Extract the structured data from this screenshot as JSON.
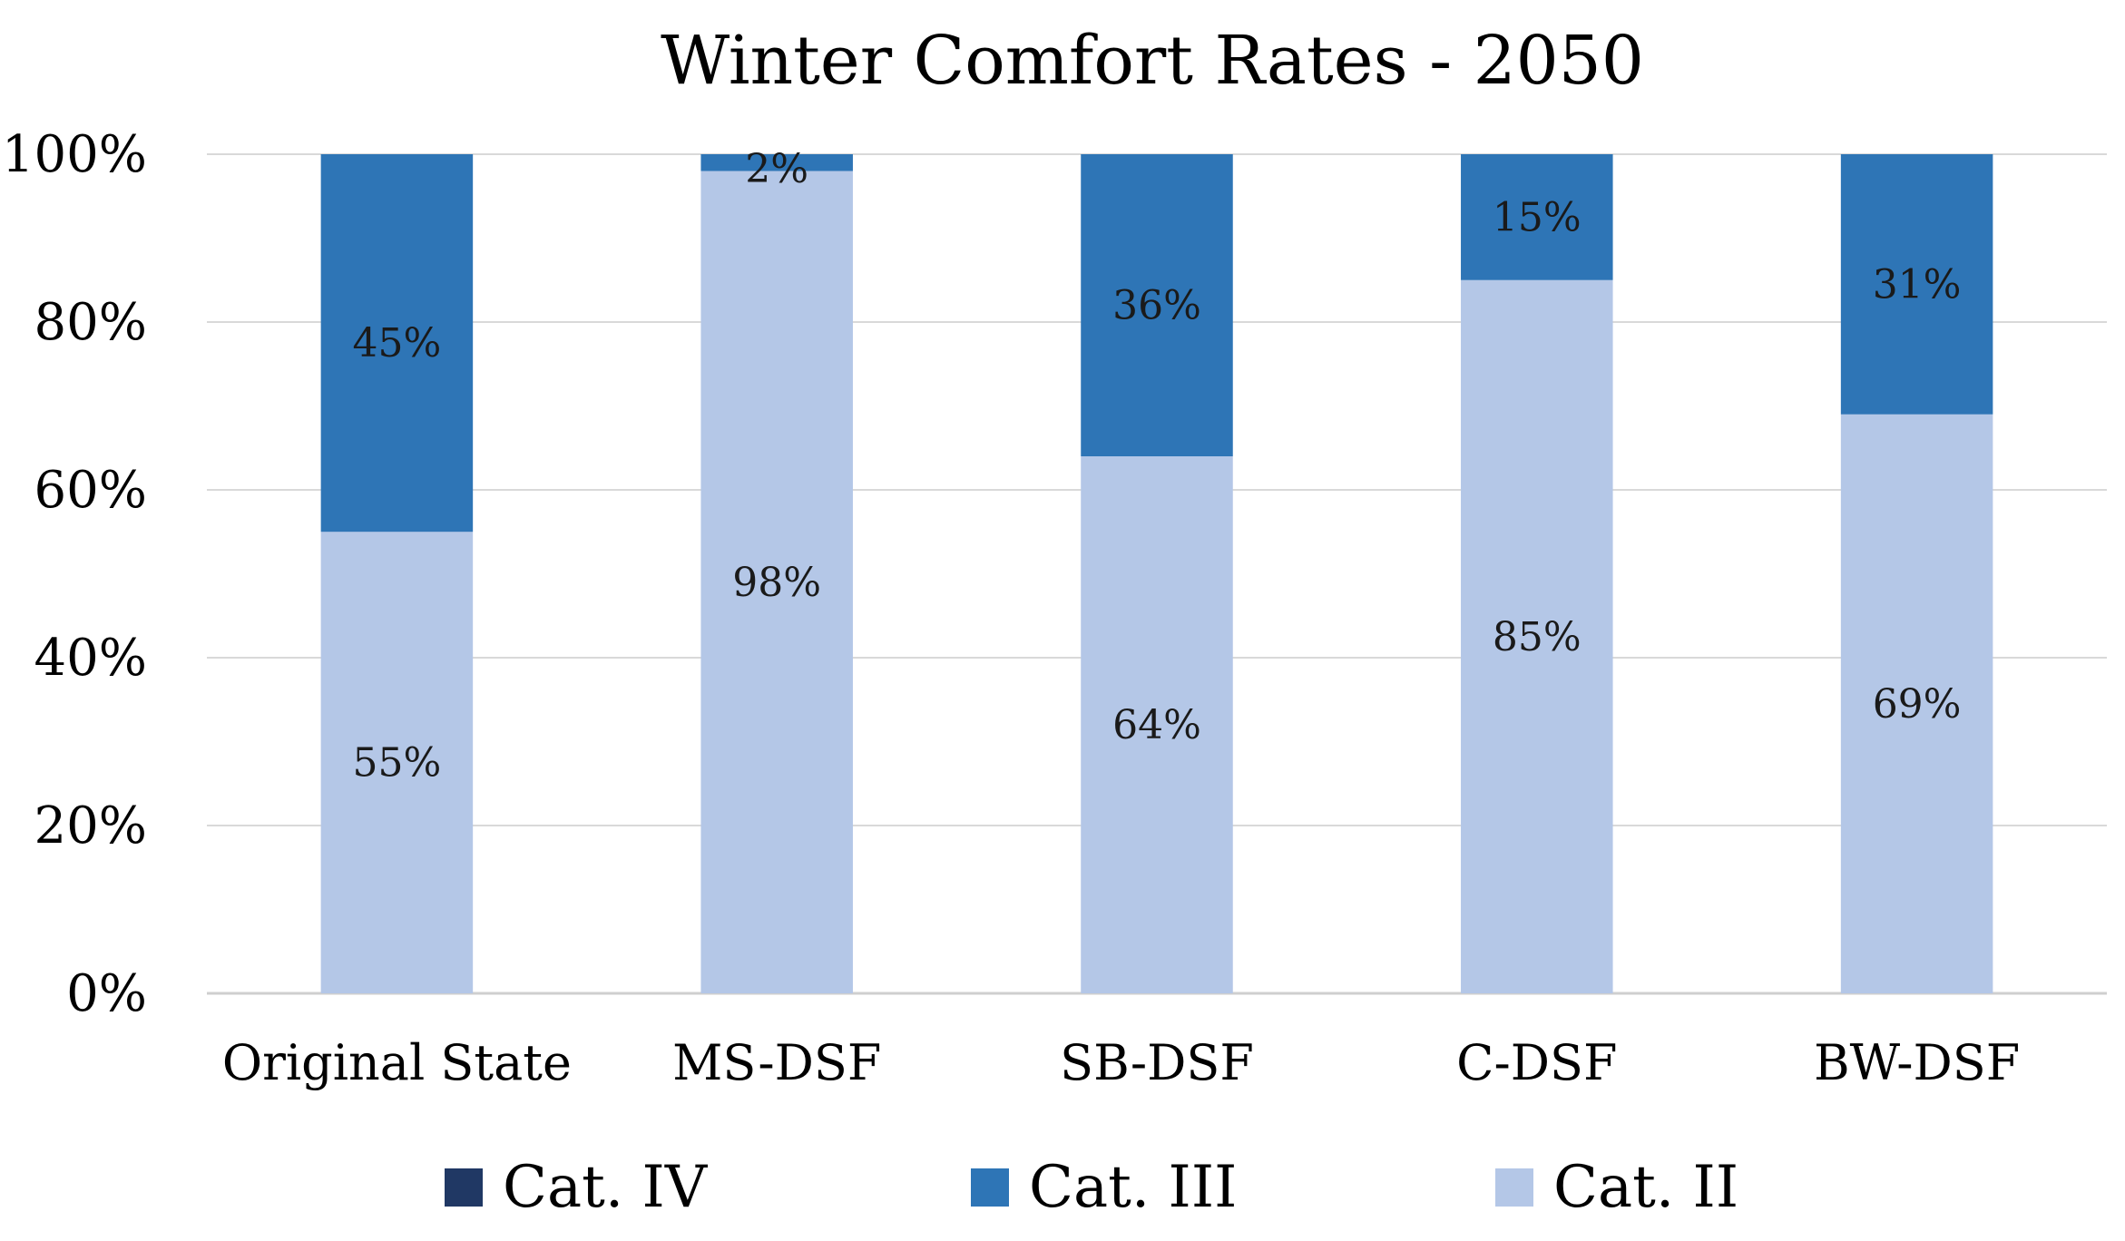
{
  "chart_data": {
    "type": "bar",
    "stacked": true,
    "title": "Winter Comfort Rates - 2050",
    "xlabel": "",
    "ylabel": "",
    "ylim": [
      0,
      100
    ],
    "yticks": [
      "0%",
      "20%",
      "40%",
      "60%",
      "80%",
      "100%"
    ],
    "categories": [
      "Original State",
      "MS-DSF",
      "SB-DSF",
      "C-DSF",
      "BW-DSF"
    ],
    "series": [
      {
        "name": "Cat. IV",
        "color": "#203864",
        "values": [
          0,
          0,
          0,
          0,
          0
        ],
        "labels": [
          "",
          "",
          "",
          "",
          ""
        ]
      },
      {
        "name": "Cat. III",
        "color": "#2E75B6",
        "values": [
          45,
          2,
          36,
          15,
          31
        ],
        "labels": [
          "45%",
          "2%",
          "36%",
          "15%",
          "31%"
        ]
      },
      {
        "name": "Cat. II",
        "color": "#B4C7E7",
        "values": [
          55,
          98,
          64,
          85,
          69
        ],
        "labels": [
          "55%",
          "98%",
          "64%",
          "85%",
          "69%"
        ]
      }
    ],
    "stack_order": [
      "Cat. II",
      "Cat. III",
      "Cat. IV"
    ],
    "grid": true,
    "legend_position": "bottom"
  }
}
